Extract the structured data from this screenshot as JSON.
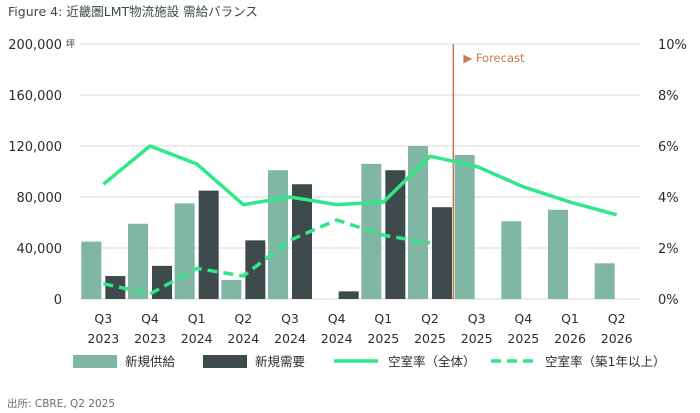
{
  "chart_data": {
    "type": "bar",
    "title": "Figure 4: 近畿圏LMT物流施設 需給バランス",
    "categories": [
      [
        "Q3",
        "2023"
      ],
      [
        "Q4",
        "2023"
      ],
      [
        "Q1",
        "2024"
      ],
      [
        "Q2",
        "2024"
      ],
      [
        "Q3",
        "2024"
      ],
      [
        "Q4",
        "2024"
      ],
      [
        "Q1",
        "2025"
      ],
      [
        "Q2",
        "2025"
      ],
      [
        "Q3",
        "2025"
      ],
      [
        "Q4",
        "2025"
      ],
      [
        "Q1",
        "2026"
      ],
      [
        "Q2",
        "2026"
      ]
    ],
    "y_left": {
      "unit": "坪",
      "ylim": [
        0,
        200000
      ],
      "ticks": [
        "0",
        "40,000",
        "80,000",
        "120,000",
        "160,000",
        "200,000"
      ]
    },
    "y_right": {
      "ylim": [
        0,
        10
      ],
      "ticks": [
        "0%",
        "2%",
        "4%",
        "6%",
        "8%",
        "10%"
      ]
    },
    "series": [
      {
        "name": "新規供給",
        "type": "bar",
        "color": "#7fb7a4",
        "values": [
          45000,
          59000,
          75000,
          15000,
          101000,
          0,
          106000,
          120000,
          113000,
          61000,
          70000,
          28000
        ]
      },
      {
        "name": "新規需要",
        "type": "bar",
        "color": "#3e4a4b",
        "values": [
          18000,
          26000,
          85000,
          46000,
          90000,
          6000,
          101000,
          72000,
          null,
          null,
          null,
          null
        ]
      },
      {
        "name": "空室率（全体）",
        "type": "line",
        "axis": "right",
        "color": "#2ee88a",
        "dash": false,
        "values": [
          4.5,
          6.0,
          5.3,
          3.7,
          4.0,
          3.7,
          3.8,
          5.6,
          5.2,
          4.4,
          3.8,
          3.3
        ]
      },
      {
        "name": "空室率（築1年以上）",
        "type": "line",
        "axis": "right",
        "color": "#2ee88a",
        "dash": true,
        "values": [
          0.6,
          0.2,
          1.2,
          0.9,
          2.3,
          3.1,
          2.5,
          2.2,
          null,
          null,
          null,
          null
        ]
      }
    ],
    "forecast_label": "▶ Forecast",
    "forecast_after_index": 7,
    "forecast_line_color": "#c9784f",
    "source": "出所: CBRE, Q2 2025",
    "grid": true,
    "legend_position": "bottom"
  }
}
